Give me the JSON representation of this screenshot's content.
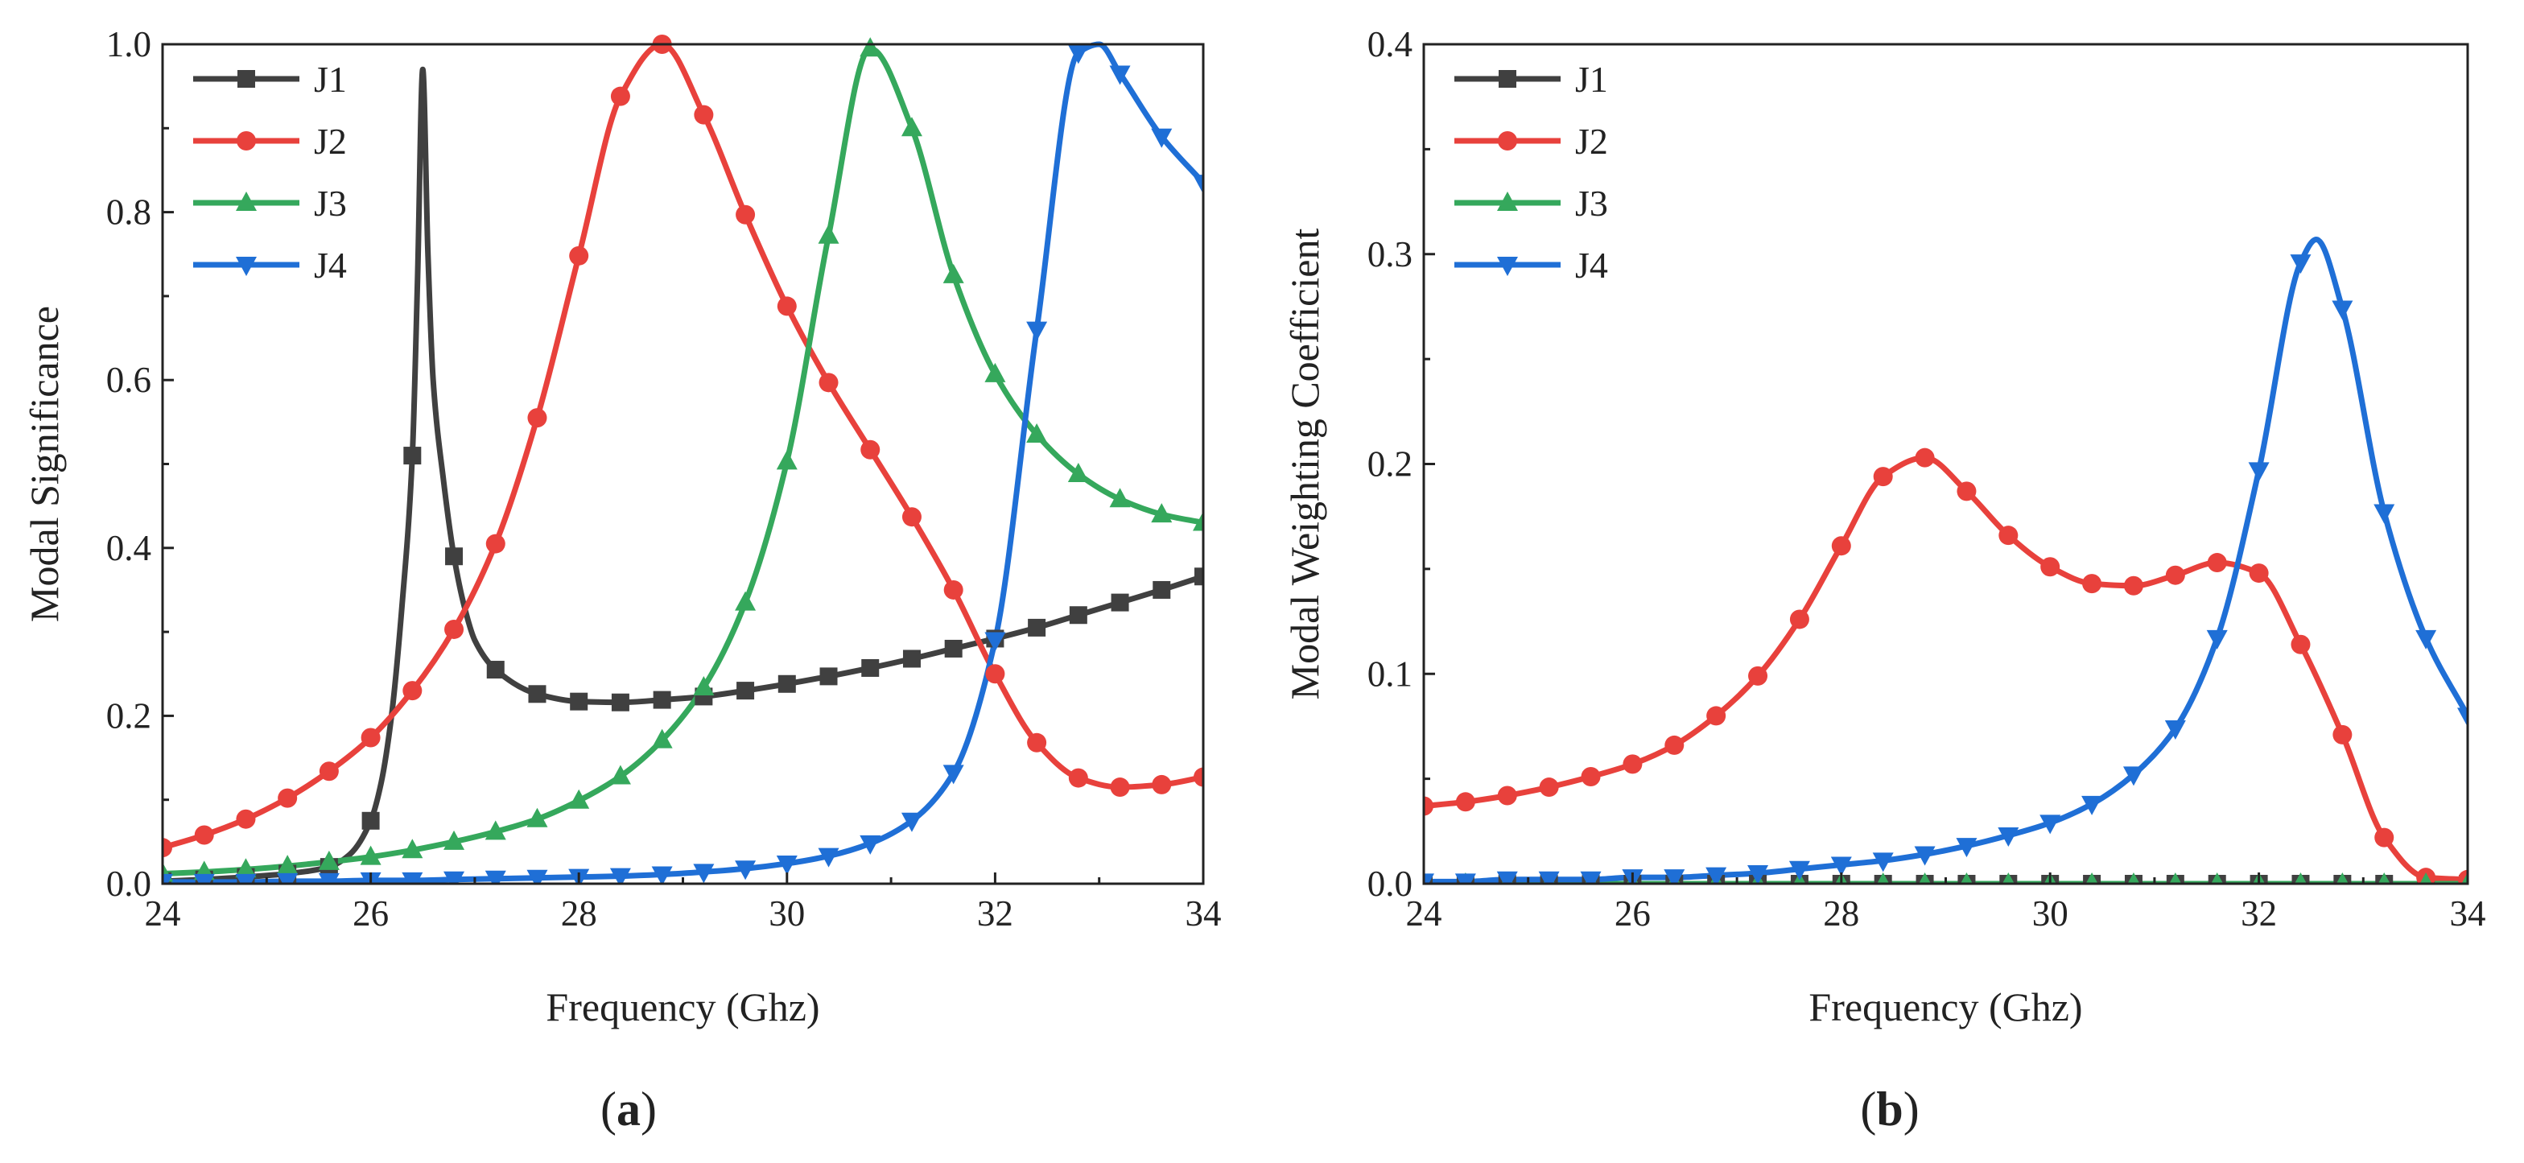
{
  "chart_data": [
    {
      "type": "line",
      "panel": "a",
      "caption": {
        "open": "(",
        "letter": "a",
        "close": ")"
      },
      "xlabel": "Frequency (Ghz)",
      "ylabel": "Modal Significance",
      "xlim": [
        24,
        34
      ],
      "ylim": [
        0,
        1.0
      ],
      "xticks": [
        "24",
        "26",
        "28",
        "30",
        "32",
        "34"
      ],
      "yticks": [
        "0.0",
        "0.2",
        "0.4",
        "0.6",
        "0.8",
        "1.0"
      ],
      "legend_position": "top-left",
      "series": [
        {
          "name": "J1",
          "color": "#404040",
          "marker": "square",
          "x": [
            24,
            24.4,
            24.8,
            25.2,
            25.6,
            25.8,
            26,
            26.1,
            26.2,
            26.3,
            26.4,
            26.45,
            26.5,
            26.55,
            26.6,
            26.7,
            26.8,
            26.9,
            27,
            27.2,
            27.6,
            28,
            28.4,
            28.8,
            29.2,
            29.6,
            30,
            30.4,
            30.8,
            31.2,
            31.6,
            32,
            32.4,
            32.8,
            33.2,
            33.6,
            34
          ],
          "y": [
            0.003,
            0.005,
            0.008,
            0.012,
            0.02,
            0.035,
            0.075,
            0.12,
            0.2,
            0.33,
            0.51,
            0.72,
            0.97,
            0.75,
            0.6,
            0.48,
            0.39,
            0.33,
            0.29,
            0.255,
            0.226,
            0.217,
            0.216,
            0.219,
            0.223,
            0.23,
            0.238,
            0.247,
            0.257,
            0.268,
            0.28,
            0.292,
            0.305,
            0.32,
            0.335,
            0.35,
            0.366
          ]
        },
        {
          "name": "J2",
          "color": "#e8413c",
          "marker": "circle",
          "x": [
            24,
            24.4,
            24.8,
            25.2,
            25.6,
            26,
            26.4,
            26.8,
            27.2,
            27.6,
            28,
            28.4,
            28.8,
            29.2,
            29.6,
            30,
            30.4,
            30.8,
            31.2,
            31.6,
            32,
            32.4,
            32.8,
            33.2,
            33.6,
            34
          ],
          "y": [
            0.043,
            0.058,
            0.077,
            0.102,
            0.134,
            0.174,
            0.23,
            0.303,
            0.405,
            0.555,
            0.748,
            0.938,
            1.0,
            0.916,
            0.797,
            0.688,
            0.597,
            0.517,
            0.437,
            0.35,
            0.25,
            0.168,
            0.126,
            0.115,
            0.118,
            0.127
          ]
        },
        {
          "name": "J3",
          "color": "#35a85c",
          "marker": "triangle-up",
          "x": [
            24,
            24.4,
            24.8,
            25.2,
            25.6,
            26,
            26.4,
            26.8,
            27.2,
            27.6,
            28,
            28.4,
            28.8,
            29.2,
            29.6,
            30,
            30.4,
            30.8,
            31.2,
            31.6,
            32,
            32.4,
            32.8,
            33.2,
            33.6,
            34
          ],
          "y": [
            0.012,
            0.014,
            0.017,
            0.021,
            0.026,
            0.032,
            0.04,
            0.05,
            0.062,
            0.077,
            0.099,
            0.128,
            0.171,
            0.234,
            0.335,
            0.503,
            0.772,
            0.995,
            0.9,
            0.725,
            0.607,
            0.535,
            0.488,
            0.458,
            0.44,
            0.43
          ]
        },
        {
          "name": "J4",
          "color": "#1f6fd6",
          "marker": "triangle-down",
          "x": [
            24,
            24.4,
            24.8,
            25.2,
            25.6,
            26,
            26.4,
            26.8,
            27.2,
            27.6,
            28,
            28.4,
            28.8,
            29.2,
            29.6,
            30,
            30.4,
            30.8,
            31.2,
            31.6,
            32,
            32.4,
            32.8,
            33,
            33.2,
            33.6,
            34
          ],
          "y": [
            0.002,
            0.002,
            0.002,
            0.003,
            0.003,
            0.004,
            0.004,
            0.005,
            0.006,
            0.007,
            0.008,
            0.009,
            0.011,
            0.014,
            0.018,
            0.024,
            0.033,
            0.048,
            0.075,
            0.132,
            0.29,
            0.66,
            0.99,
            1.0,
            0.965,
            0.89,
            0.835
          ]
        }
      ]
    },
    {
      "type": "line",
      "panel": "b",
      "caption": {
        "open": "(",
        "letter": "b",
        "close": ")"
      },
      "xlabel": "Frequency (Ghz)",
      "ylabel": "Modal Weighting Coefficient",
      "xlim": [
        24,
        34
      ],
      "ylim": [
        0,
        0.4
      ],
      "xticks": [
        "24",
        "26",
        "28",
        "30",
        "32",
        "34"
      ],
      "yticks": [
        "0.0",
        "0.1",
        "0.2",
        "0.3",
        "0.4"
      ],
      "legend_position": "top-left",
      "series": [
        {
          "name": "J1",
          "color": "#404040",
          "marker": "square",
          "x": [
            24,
            24.4,
            24.8,
            25.2,
            25.6,
            26,
            26.4,
            26.8,
            27.2,
            27.6,
            28,
            28.4,
            28.8,
            29.2,
            29.6,
            30,
            30.4,
            30.8,
            31.2,
            31.6,
            32,
            32.4,
            32.8,
            33.2,
            33.6,
            34
          ],
          "y": [
            0,
            0,
            0,
            0,
            0,
            0,
            0,
            0,
            0,
            0,
            0,
            0,
            0,
            0,
            0,
            0,
            0,
            0,
            0,
            0,
            0,
            0,
            0,
            0,
            0,
            0
          ]
        },
        {
          "name": "J2",
          "color": "#e8413c",
          "marker": "circle",
          "x": [
            24,
            24.4,
            24.8,
            25.2,
            25.6,
            26,
            26.4,
            26.8,
            27.2,
            27.6,
            28,
            28.4,
            28.8,
            29.2,
            29.6,
            30,
            30.4,
            30.8,
            31.2,
            31.6,
            32,
            32.4,
            32.8,
            33.2,
            33.6,
            34
          ],
          "y": [
            0.037,
            0.039,
            0.042,
            0.046,
            0.051,
            0.057,
            0.066,
            0.08,
            0.099,
            0.126,
            0.161,
            0.194,
            0.203,
            0.187,
            0.166,
            0.151,
            0.143,
            0.142,
            0.147,
            0.153,
            0.148,
            0.114,
            0.071,
            0.022,
            0.003,
            0.002
          ]
        },
        {
          "name": "J3",
          "color": "#35a85c",
          "marker": "triangle-up",
          "x": [
            24,
            24.4,
            24.8,
            25.2,
            25.6,
            26,
            26.4,
            26.8,
            27.2,
            27.6,
            28,
            28.4,
            28.8,
            29.2,
            29.6,
            30,
            30.4,
            30.8,
            31.2,
            31.6,
            32,
            32.4,
            32.8,
            33.2,
            33.6,
            34
          ],
          "y": [
            0,
            0,
            0,
            0,
            0,
            0,
            0,
            0,
            0,
            0,
            0,
            0,
            0,
            0,
            0,
            0,
            0,
            0,
            0,
            0,
            0,
            0,
            0,
            0,
            0,
            0
          ]
        },
        {
          "name": "J4",
          "color": "#1f6fd6",
          "marker": "triangle-down",
          "x": [
            24,
            24.4,
            24.8,
            25.2,
            25.6,
            26,
            26.4,
            26.8,
            27.2,
            27.6,
            28,
            28.4,
            28.8,
            29.2,
            29.6,
            30,
            30.4,
            30.8,
            31.2,
            31.6,
            32,
            32.4,
            32.55,
            32.8,
            33.2,
            33.6,
            34
          ],
          "y": [
            0.001,
            0.001,
            0.002,
            0.002,
            0.002,
            0.003,
            0.003,
            0.004,
            0.005,
            0.007,
            0.009,
            0.011,
            0.014,
            0.018,
            0.023,
            0.029,
            0.038,
            0.052,
            0.074,
            0.117,
            0.197,
            0.296,
            0.307,
            0.274,
            0.177,
            0.117,
            0.08
          ]
        }
      ]
    }
  ]
}
